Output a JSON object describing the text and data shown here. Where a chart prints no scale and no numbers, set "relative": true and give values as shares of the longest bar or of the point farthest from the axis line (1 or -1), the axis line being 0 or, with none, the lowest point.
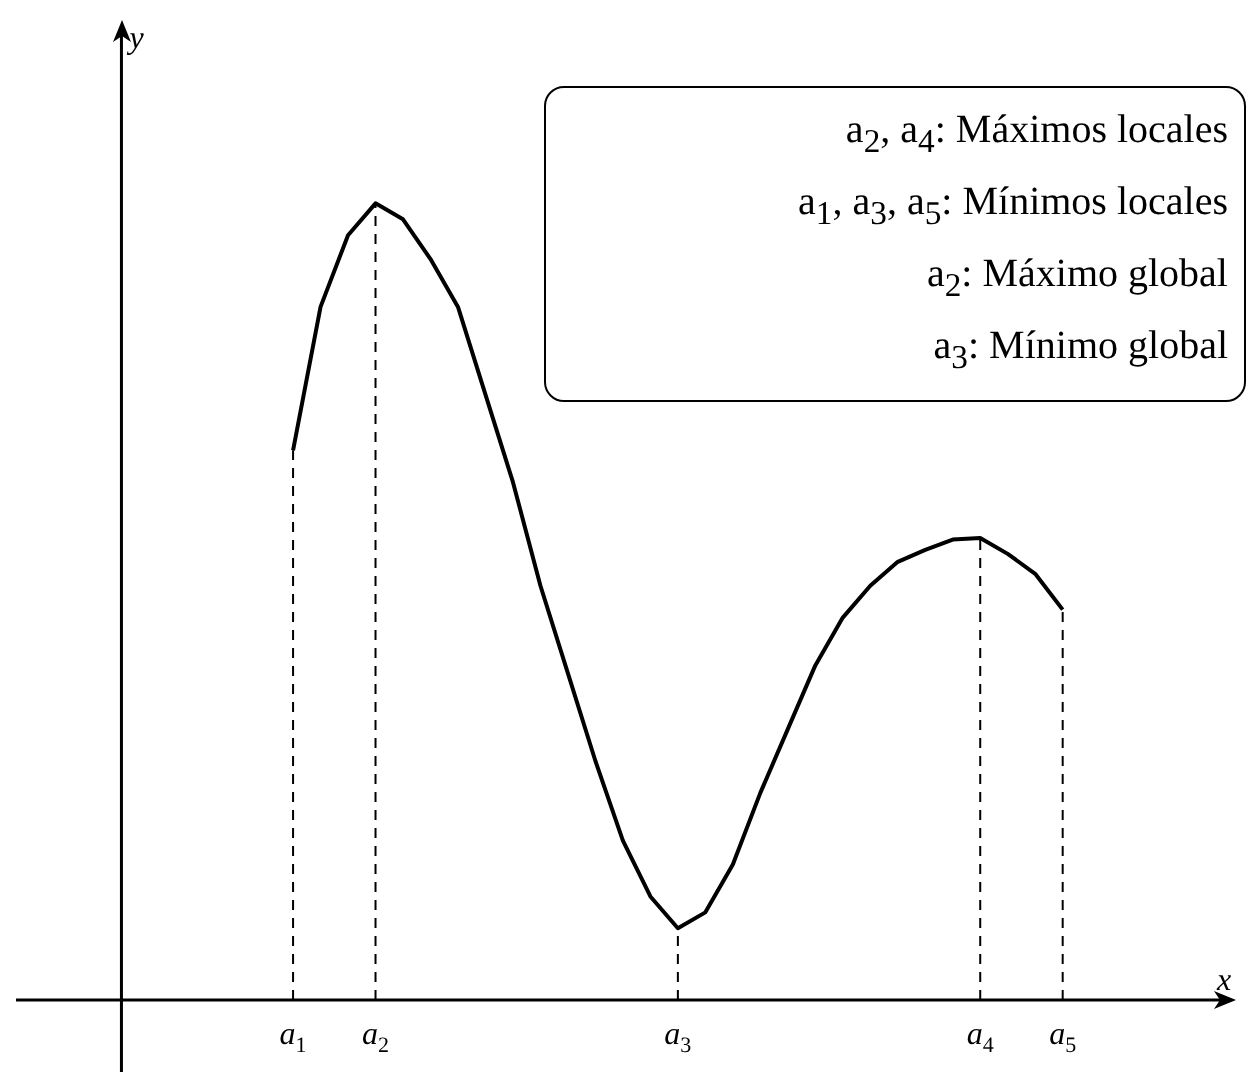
{
  "chart_data": {
    "type": "line",
    "relative": true,
    "xlabel": "x",
    "categories": [
      "a$_{1}$",
      null,
      null,
      "a$_{2}$",
      null,
      null,
      null,
      null,
      null,
      null,
      null,
      null,
      null,
      null,
      "a$_{3}$",
      null,
      null,
      null,
      null,
      null,
      null,
      null,
      null,
      null,
      null,
      "a$_{4}$",
      null,
      null,
      "a$_{5}$"
    ],
    "series": [
      {
        "color": "#000000",
        "values": [
          0.69,
          0.87,
          0.96,
          1.0,
          0.98,
          0.93,
          0.87,
          0.76,
          0.65,
          0.52,
          0.41,
          0.3,
          0.2,
          0.13,
          0.09,
          0.11,
          0.17,
          0.26,
          0.34,
          0.42,
          0.48,
          0.52,
          0.55,
          0.565,
          0.578,
          0.58,
          0.56,
          0.535,
          0.49
        ]
      }
    ],
    "ref_lines": [
      {
        "axis": "x",
        "value": "a$_{1}$",
        "line_style": "dashed"
      },
      {
        "axis": "x",
        "value": "a$_{2}$",
        "line_style": "dashed"
      },
      {
        "axis": "x",
        "value": "a$_{3}$",
        "line_style": "dashed"
      },
      {
        "axis": "x",
        "value": "a$_{4}$",
        "line_style": "dashed"
      },
      {
        "axis": "x",
        "value": "a$_{5}$",
        "line_style": "dashed"
      }
    ],
    "annotations": [
      "y",
      "a$_{2}$, a$_{4}$: Máximos locales",
      "a$_{1}$, a$_{3}$, a$_{5}$: Mínimos locales",
      "a$_{2}$: Máximo global",
      "a$_{3}$: Mínimo global"
    ],
    "marker": "none",
    "line_style": "solid",
    "legend": false
  }
}
